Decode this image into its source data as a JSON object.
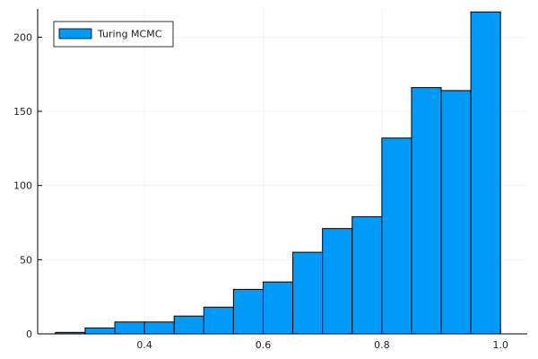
{
  "chart_data": {
    "type": "bar",
    "title": "",
    "xlabel": "",
    "ylabel": "",
    "legend": {
      "position": "top-left",
      "entries": [
        "Turing MCMC"
      ]
    },
    "grid": true,
    "xlim": [
      0.22,
      1.045
    ],
    "ylim": [
      0,
      219
    ],
    "x_ticks": [
      0.4,
      0.6,
      0.8,
      1.0
    ],
    "x_tick_labels": [
      "0.4",
      "0.6",
      "0.8",
      "1.0"
    ],
    "y_ticks": [
      0,
      50,
      100,
      150,
      200
    ],
    "y_tick_labels": [
      "0",
      "50",
      "100",
      "150",
      "200"
    ],
    "bin_width": 0.05,
    "series": [
      {
        "name": "Turing MCMC",
        "color": "#009af9",
        "bins": [
          {
            "x0": 0.25,
            "x1": 0.3,
            "count": 1
          },
          {
            "x0": 0.3,
            "x1": 0.35,
            "count": 4
          },
          {
            "x0": 0.35,
            "x1": 0.4,
            "count": 8
          },
          {
            "x0": 0.4,
            "x1": 0.45,
            "count": 8
          },
          {
            "x0": 0.45,
            "x1": 0.5,
            "count": 12
          },
          {
            "x0": 0.5,
            "x1": 0.55,
            "count": 18
          },
          {
            "x0": 0.55,
            "x1": 0.6,
            "count": 30
          },
          {
            "x0": 0.6,
            "x1": 0.65,
            "count": 35
          },
          {
            "x0": 0.65,
            "x1": 0.7,
            "count": 55
          },
          {
            "x0": 0.7,
            "x1": 0.75,
            "count": 71
          },
          {
            "x0": 0.75,
            "x1": 0.8,
            "count": 79
          },
          {
            "x0": 0.8,
            "x1": 0.85,
            "count": 132
          },
          {
            "x0": 0.85,
            "x1": 0.9,
            "count": 166
          },
          {
            "x0": 0.9,
            "x1": 0.95,
            "count": 164
          },
          {
            "x0": 0.95,
            "x1": 1.0,
            "count": 217
          }
        ]
      }
    ]
  }
}
